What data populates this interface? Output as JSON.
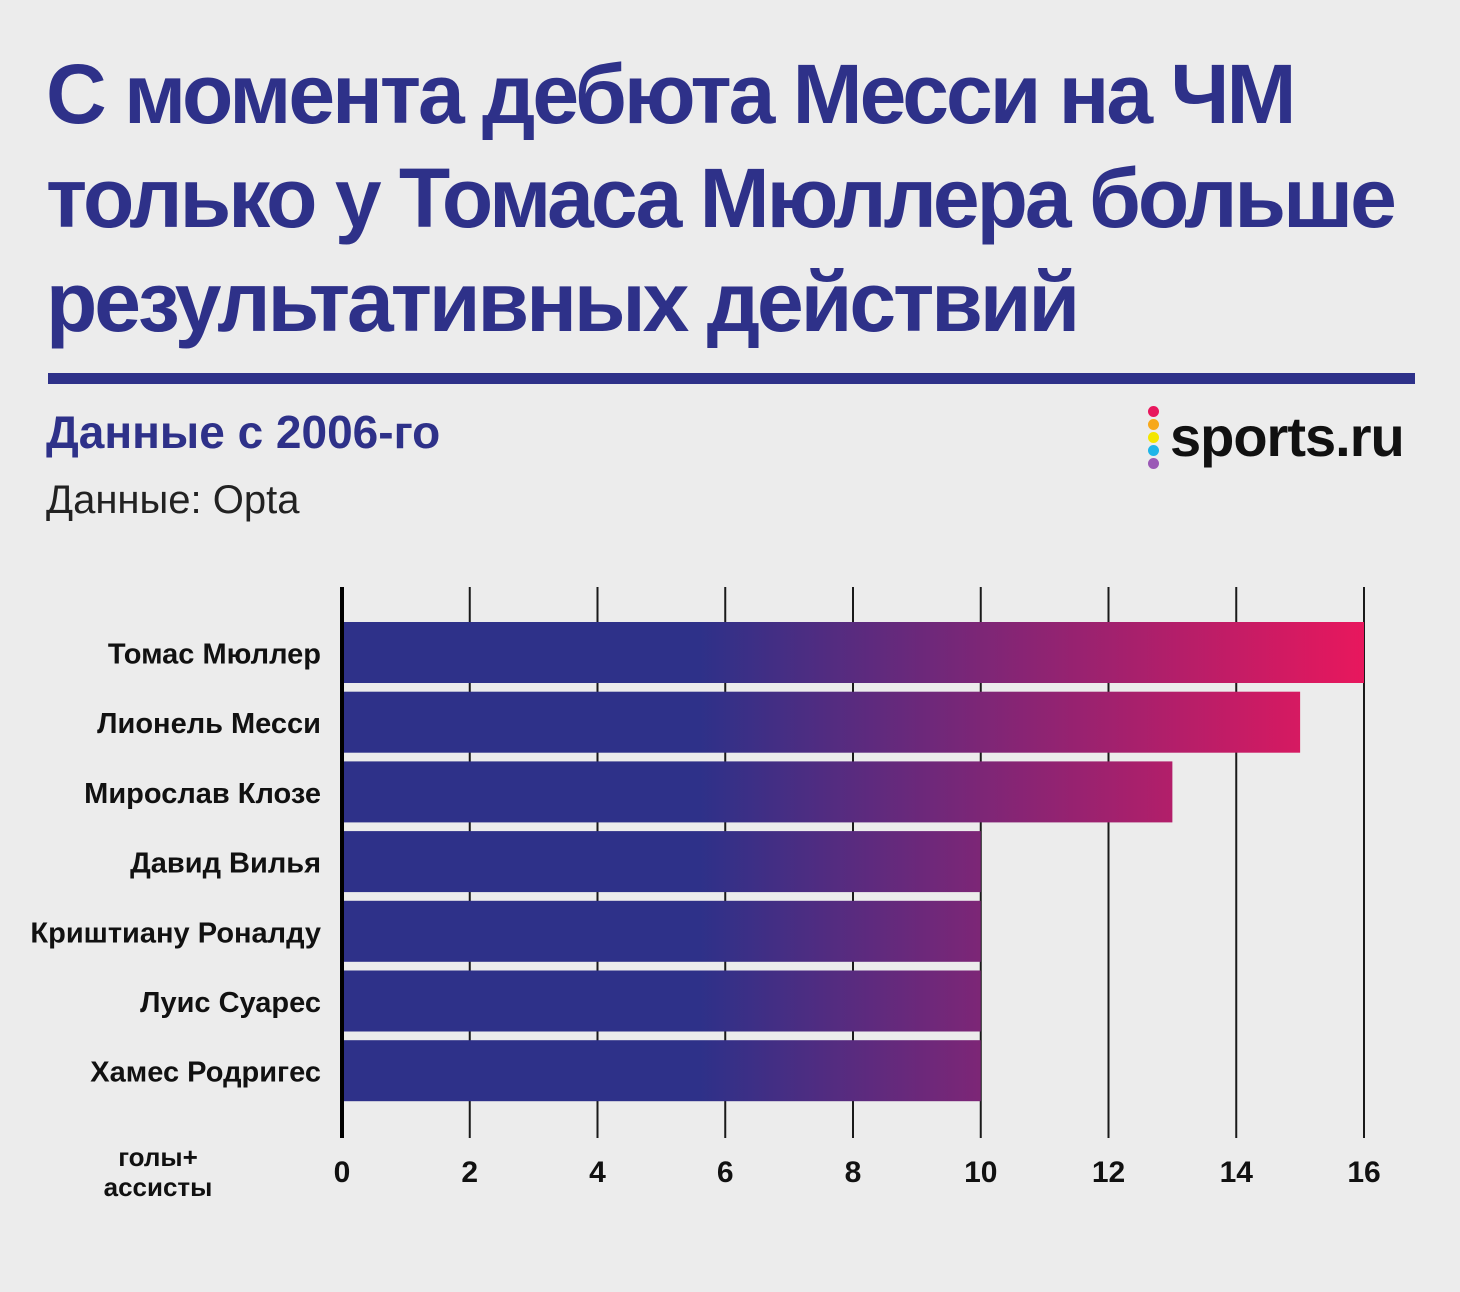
{
  "title": "С момента дебюта Месси на ЧМ только у Томаса Мюллера больше результативных действий",
  "subtitle": "Данные с 2006-го",
  "source": "Данные: Opta",
  "logo": {
    "text": "sports.ru",
    "dot_colors": [
      "#e8175d",
      "#f7a81b",
      "#f3e600",
      "#1fb5e9",
      "#9b59b6"
    ]
  },
  "colors": {
    "brand": "#2e3189",
    "bar_start": "#2e3189",
    "bar_end": "#e8175d",
    "grid": "#1a1a1a"
  },
  "chart_data": {
    "type": "bar",
    "orientation": "horizontal",
    "categories": [
      "Томас Мюллер",
      "Лионель Месси",
      "Мирослав Клозе",
      "Давид Вилья",
      "Криштиану Роналду",
      "Луис Суарес",
      "Хамес Родригес"
    ],
    "values": [
      16,
      15,
      13,
      10,
      10,
      10,
      10
    ],
    "xlabel": "голы+ ассисты",
    "xlim": [
      0,
      16
    ],
    "ticks": [
      0,
      2,
      4,
      6,
      8,
      10,
      12,
      14,
      16
    ],
    "grid": true
  }
}
